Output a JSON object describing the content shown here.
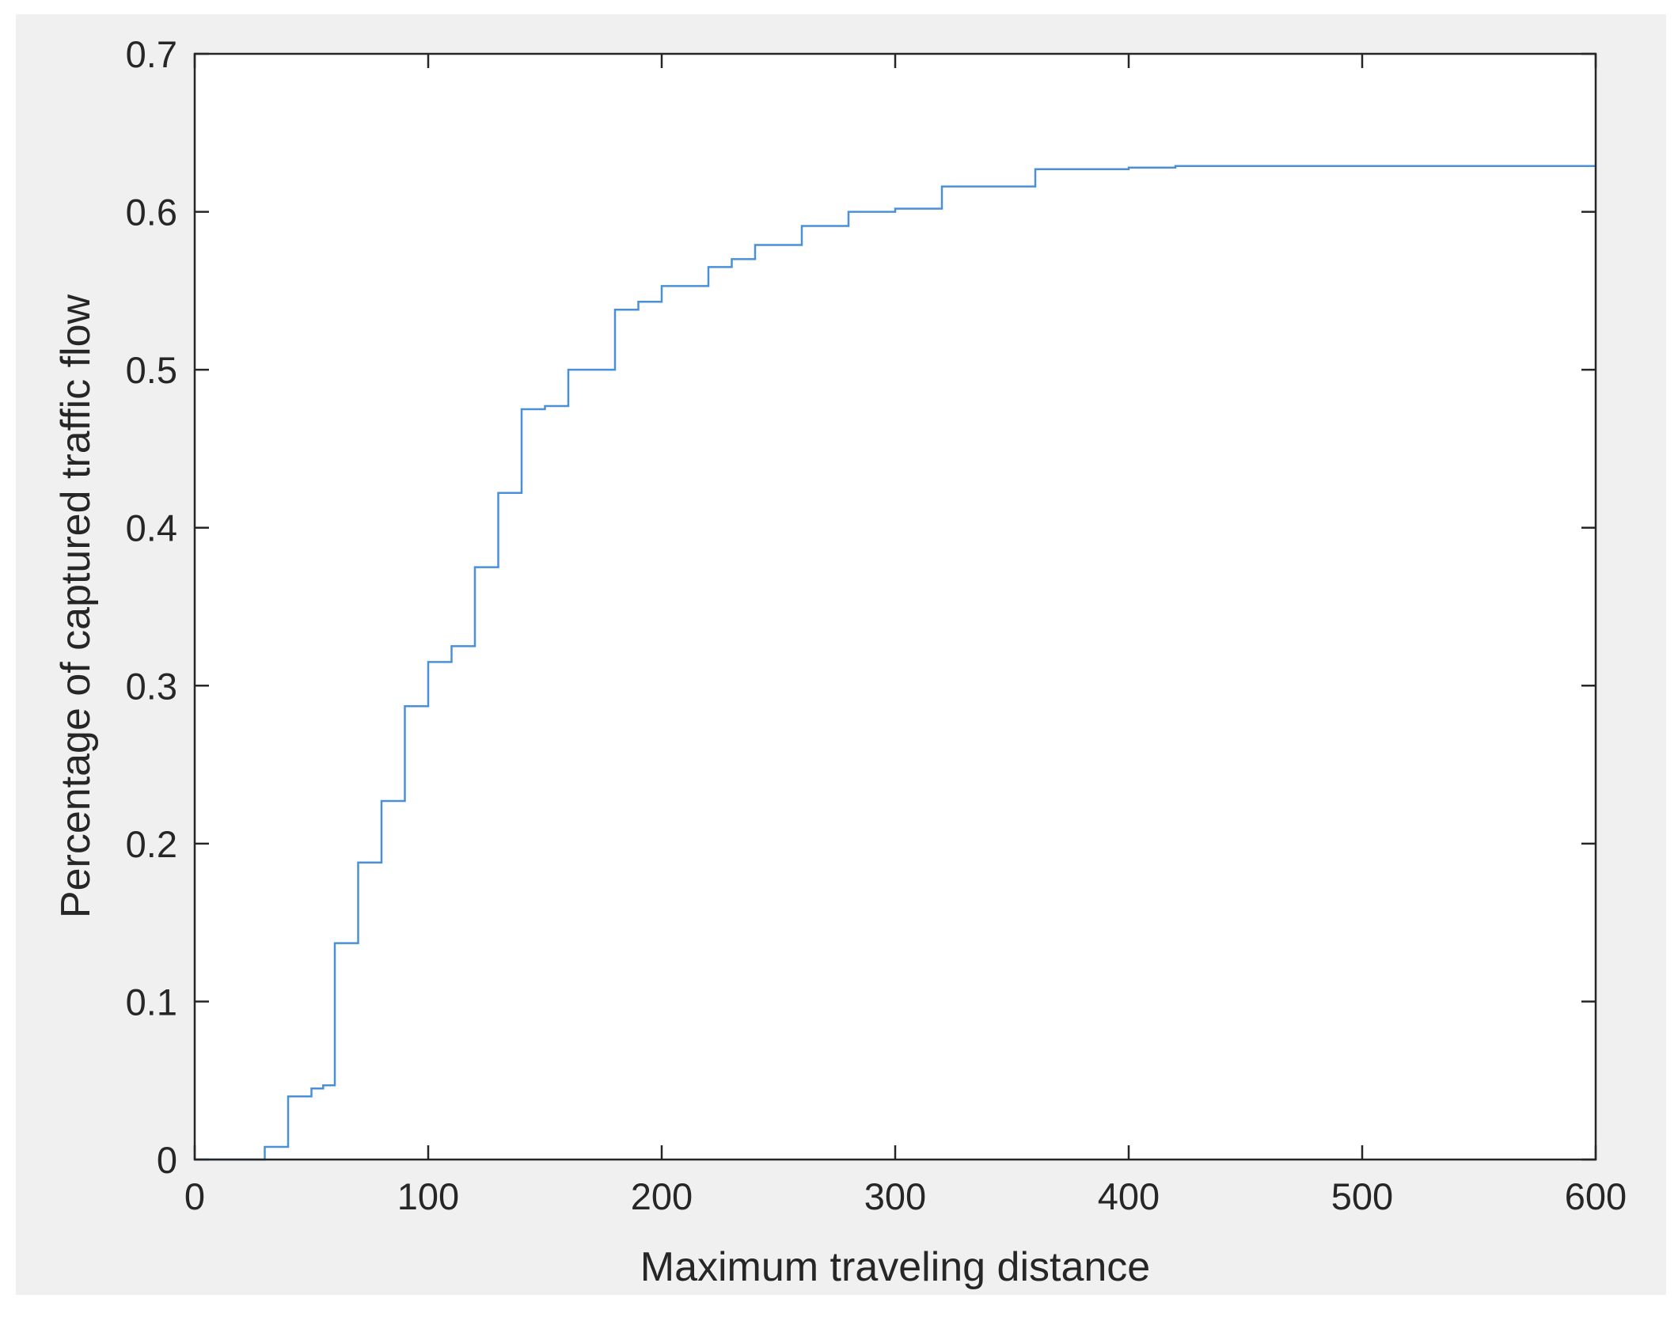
{
  "chart_data": {
    "type": "line",
    "title": "",
    "xlabel": "Maximum traveling distance",
    "ylabel": "Percentage of captured traffic flow",
    "xlim": [
      0,
      600
    ],
    "ylim": [
      0,
      0.7
    ],
    "xticks": [
      0,
      100,
      200,
      300,
      400,
      500,
      600
    ],
    "yticks": [
      0,
      0.1,
      0.2,
      0.3,
      0.4,
      0.5,
      0.6,
      0.7
    ],
    "xtick_labels": [
      "0",
      "100",
      "200",
      "300",
      "400",
      "500",
      "600"
    ],
    "ytick_labels": [
      "0",
      "0.1",
      "0.2",
      "0.3",
      "0.4",
      "0.5",
      "0.6",
      "0.7"
    ],
    "grid": false,
    "line_color": "#4a90d9",
    "series": [
      {
        "style": "step",
        "x": [
          0,
          30,
          40,
          50,
          55,
          60,
          70,
          80,
          90,
          100,
          110,
          120,
          130,
          140,
          150,
          160,
          180,
          190,
          200,
          220,
          230,
          240,
          260,
          280,
          300,
          320,
          360,
          400,
          420,
          600
        ],
        "values": [
          0,
          0.008,
          0.04,
          0.045,
          0.047,
          0.137,
          0.188,
          0.227,
          0.287,
          0.315,
          0.325,
          0.375,
          0.422,
          0.475,
          0.477,
          0.5,
          0.538,
          0.543,
          0.553,
          0.565,
          0.57,
          0.579,
          0.591,
          0.6,
          0.602,
          0.616,
          0.627,
          0.628,
          0.629,
          0.629
        ]
      }
    ]
  }
}
